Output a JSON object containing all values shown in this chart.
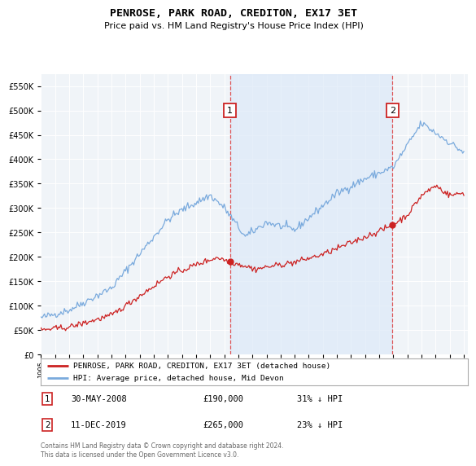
{
  "title": "PENROSE, PARK ROAD, CREDITON, EX17 3ET",
  "subtitle": "Price paid vs. HM Land Registry's House Price Index (HPI)",
  "hpi_label": "HPI: Average price, detached house, Mid Devon",
  "property_label": "PENROSE, PARK ROAD, CREDITON, EX17 3ET (detached house)",
  "footer": "Contains HM Land Registry data © Crown copyright and database right 2024.\nThis data is licensed under the Open Government Licence v3.0.",
  "hpi_color": "#7aaadd",
  "hpi_fill_color": "#ddeaf8",
  "property_color": "#cc2222",
  "annotation1_date": "30-MAY-2008",
  "annotation1_price": 190000,
  "annotation1_pct": "31% ↓ HPI",
  "annotation1_year": 2008.42,
  "annotation2_date": "11-DEC-2019",
  "annotation2_price": 265000,
  "annotation2_pct": "23% ↓ HPI",
  "annotation2_year": 2019.94,
  "ylim_max": 575000,
  "ylim_min": 0,
  "background_color": "#f0f4f8",
  "plot_bg": "#f0f4f8"
}
